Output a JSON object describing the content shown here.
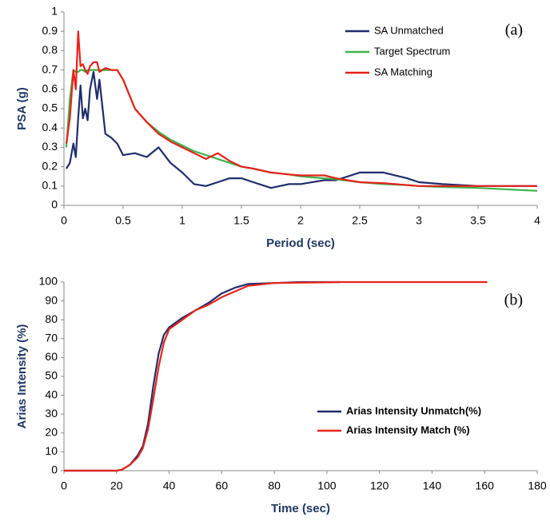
{
  "chart_data": [
    {
      "type": "line",
      "annotation": "(a)",
      "xlabel": "Period (sec)",
      "ylabel": "PSA (g)",
      "x": [
        0.02,
        0.05,
        0.08,
        0.1,
        0.12,
        0.14,
        0.16,
        0.18,
        0.2,
        0.22,
        0.25,
        0.28,
        0.3,
        0.35,
        0.4,
        0.45,
        0.5,
        0.6,
        0.7,
        0.8,
        0.9,
        1.0,
        1.1,
        1.2,
        1.3,
        1.4,
        1.5,
        1.6,
        1.75,
        1.9,
        2.0,
        2.2,
        2.3,
        2.5,
        2.7,
        2.9,
        3.0,
        3.2,
        3.5,
        4.0
      ],
      "series": [
        {
          "name": "SA Unmatched",
          "color": "#1f2d6b",
          "values": [
            0.19,
            0.22,
            0.32,
            0.25,
            0.45,
            0.62,
            0.45,
            0.5,
            0.44,
            0.6,
            0.69,
            0.55,
            0.65,
            0.37,
            0.35,
            0.32,
            0.26,
            0.27,
            0.25,
            0.3,
            0.22,
            0.17,
            0.11,
            0.1,
            0.12,
            0.14,
            0.14,
            0.12,
            0.09,
            0.11,
            0.11,
            0.13,
            0.13,
            0.17,
            0.17,
            0.14,
            0.12,
            0.11,
            0.1,
            0.1
          ]
        },
        {
          "name": "Target Spectrum",
          "color": "#3cb44b",
          "values": [
            0.3,
            0.55,
            0.7,
            0.69,
            0.69,
            0.7,
            0.7,
            0.69,
            0.7,
            0.7,
            0.7,
            0.7,
            0.7,
            0.7,
            0.7,
            0.7,
            0.65,
            0.5,
            0.43,
            0.38,
            0.34,
            0.31,
            0.28,
            0.26,
            0.24,
            0.22,
            0.2,
            0.19,
            0.17,
            0.16,
            0.15,
            0.14,
            0.135,
            0.12,
            0.11,
            0.105,
            0.1,
            0.095,
            0.09,
            0.075
          ]
        },
        {
          "name": "SA Matching",
          "color": "#e8221b",
          "values": [
            0.32,
            0.45,
            0.7,
            0.6,
            0.9,
            0.72,
            0.73,
            0.7,
            0.68,
            0.72,
            0.74,
            0.74,
            0.69,
            0.71,
            0.7,
            0.7,
            0.65,
            0.5,
            0.43,
            0.37,
            0.33,
            0.3,
            0.27,
            0.24,
            0.27,
            0.23,
            0.2,
            0.19,
            0.17,
            0.16,
            0.155,
            0.155,
            0.14,
            0.12,
            0.115,
            0.105,
            0.1,
            0.1,
            0.1,
            0.1
          ]
        }
      ],
      "xlim": [
        0,
        4
      ],
      "xticks": [
        0,
        0.5,
        1,
        1.5,
        2,
        2.5,
        3,
        3.5,
        4
      ],
      "ylim": [
        0,
        1
      ],
      "yticks": [
        0,
        0.1,
        0.2,
        0.3,
        0.4,
        0.5,
        0.6,
        0.7,
        0.8,
        0.9,
        1
      ],
      "grid": false,
      "legend": "upper right"
    },
    {
      "type": "line",
      "annotation": "(b)",
      "xlabel": "Time (sec)",
      "ylabel": "Arias Intensity (%)",
      "x": [
        0,
        20,
        22,
        25,
        28,
        30,
        32,
        34,
        36,
        38,
        40,
        45,
        50,
        55,
        60,
        65,
        70,
        80,
        90,
        105,
        120,
        140,
        161
      ],
      "series": [
        {
          "name": "Arias Intensity  Unmatch(%)",
          "color": "#1f2d6b",
          "values": [
            0,
            0,
            0.5,
            3,
            8,
            13,
            25,
            45,
            62,
            72,
            76,
            81,
            85,
            89,
            94,
            97,
            99,
            99.5,
            100,
            100,
            null,
            null,
            null
          ]
        },
        {
          "name": "Arias Intensity Match (%)",
          "color": "#e8221b",
          "values": [
            0,
            0,
            0.5,
            3,
            7,
            12,
            22,
            38,
            55,
            68,
            75,
            80,
            85,
            88,
            92,
            95,
            98,
            99.5,
            99.7,
            100,
            100,
            100,
            100
          ]
        }
      ],
      "xlim": [
        0,
        180
      ],
      "xticks": [
        0,
        20,
        40,
        60,
        80,
        100,
        120,
        140,
        160,
        180
      ],
      "ylim": [
        0,
        100
      ],
      "yticks": [
        0,
        10,
        20,
        30,
        40,
        50,
        60,
        70,
        80,
        90,
        100
      ],
      "grid": false,
      "legend": "lower right"
    }
  ]
}
